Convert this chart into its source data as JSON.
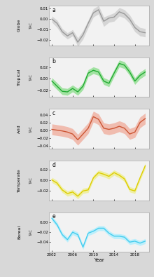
{
  "years": [
    2002,
    2003,
    2004,
    2005,
    2006,
    2007,
    2008,
    2009,
    2010,
    2011,
    2012,
    2013,
    2014,
    2015,
    2016,
    2017,
    2018,
    2019,
    2020
  ],
  "panels": [
    {
      "label": "a",
      "region": "Globe",
      "color_line": "#999999",
      "color_fill": "#cccccc",
      "ylim": [
        -0.025,
        0.013
      ],
      "yticks": [
        -0.02,
        -0.01,
        0,
        0.01
      ],
      "values": [
        0.0,
        -0.004,
        -0.012,
        -0.016,
        -0.013,
        -0.022,
        -0.015,
        -0.004,
        0.006,
        0.009,
        -0.002,
        0.001,
        0.002,
        0.007,
        0.005,
        0.0,
        -0.008,
        -0.012,
        -0.013
      ],
      "upper": [
        0.003,
        -0.001,
        -0.009,
        -0.013,
        -0.01,
        -0.018,
        -0.011,
        -0.001,
        0.01,
        0.013,
        0.002,
        0.004,
        0.006,
        0.011,
        0.009,
        0.004,
        -0.004,
        -0.008,
        -0.009
      ],
      "lower": [
        -0.003,
        -0.008,
        -0.015,
        -0.019,
        -0.016,
        -0.026,
        -0.019,
        -0.008,
        0.002,
        0.005,
        -0.007,
        -0.003,
        -0.002,
        0.003,
        0.001,
        -0.004,
        -0.012,
        -0.016,
        -0.017
      ]
    },
    {
      "label": "b",
      "region": "Tropical",
      "color_line": "#22aa33",
      "color_fill": "#88dd88",
      "ylim": [
        -0.032,
        0.038
      ],
      "yticks": [
        -0.02,
        0,
        0.02
      ],
      "values": [
        -0.004,
        -0.013,
        -0.022,
        -0.023,
        -0.017,
        -0.023,
        -0.013,
        0.01,
        0.015,
        0.012,
        -0.004,
        -0.008,
        0.01,
        0.027,
        0.024,
        0.012,
        -0.004,
        0.006,
        0.012
      ],
      "upper": [
        0.002,
        -0.007,
        -0.016,
        -0.017,
        -0.011,
        -0.017,
        -0.007,
        0.016,
        0.021,
        0.018,
        0.002,
        -0.002,
        0.016,
        0.033,
        0.03,
        0.018,
        0.002,
        0.012,
        0.018
      ],
      "lower": [
        -0.01,
        -0.019,
        -0.028,
        -0.029,
        -0.023,
        -0.029,
        -0.019,
        0.004,
        0.009,
        0.006,
        -0.01,
        -0.014,
        0.004,
        0.021,
        0.018,
        0.006,
        -0.01,
        0.0,
        0.006
      ]
    },
    {
      "label": "c",
      "region": "Arid",
      "color_line": "#cc5533",
      "color_fill": "#f0aa99",
      "ylim": [
        -0.048,
        0.055
      ],
      "yticks": [
        -0.04,
        -0.02,
        0,
        0.02,
        0.04
      ],
      "values": [
        0.002,
        0.0,
        -0.002,
        -0.005,
        -0.01,
        -0.025,
        -0.01,
        0.005,
        0.035,
        0.028,
        0.005,
        0.002,
        0.005,
        0.01,
        0.005,
        -0.01,
        -0.005,
        0.02,
        0.03
      ],
      "upper": [
        0.016,
        0.014,
        0.012,
        0.009,
        0.004,
        -0.011,
        0.004,
        0.019,
        0.049,
        0.042,
        0.019,
        0.016,
        0.019,
        0.024,
        0.019,
        0.004,
        0.009,
        0.034,
        0.044
      ],
      "lower": [
        -0.012,
        -0.014,
        -0.016,
        -0.019,
        -0.024,
        -0.039,
        -0.024,
        -0.009,
        0.021,
        0.014,
        -0.009,
        -0.012,
        -0.009,
        -0.004,
        -0.009,
        -0.024,
        -0.019,
        0.006,
        0.016
      ]
    },
    {
      "label": "d",
      "region": "Temperate",
      "color_line": "#ddcc00",
      "color_fill": "#eeee88",
      "ylim": [
        -0.038,
        0.038
      ],
      "yticks": [
        -0.02,
        0,
        0.02
      ],
      "values": [
        0.001,
        -0.005,
        -0.018,
        -0.025,
        -0.022,
        -0.03,
        -0.02,
        -0.018,
        0.005,
        0.015,
        0.012,
        0.008,
        0.015,
        0.01,
        0.003,
        -0.017,
        -0.02,
        0.005,
        0.028
      ],
      "upper": [
        0.006,
        0.0,
        -0.013,
        -0.02,
        -0.017,
        -0.025,
        -0.015,
        -0.013,
        0.01,
        0.02,
        0.017,
        0.013,
        0.02,
        0.015,
        0.008,
        -0.012,
        -0.015,
        0.01,
        0.033
      ],
      "lower": [
        -0.004,
        -0.01,
        -0.023,
        -0.03,
        -0.027,
        -0.035,
        -0.025,
        -0.023,
        0.0,
        0.01,
        0.007,
        0.003,
        0.01,
        0.005,
        -0.002,
        -0.022,
        -0.025,
        0.0,
        0.023
      ]
    },
    {
      "label": "e",
      "region": "Boreal",
      "color_line": "#44ccee",
      "color_fill": "#aaeeff",
      "ylim": [
        -0.06,
        0.02
      ],
      "yticks": [
        -0.04,
        -0.02,
        0
      ],
      "values": [
        0.008,
        -0.005,
        -0.025,
        -0.035,
        -0.02,
        -0.025,
        -0.05,
        -0.022,
        -0.018,
        -0.012,
        -0.012,
        -0.022,
        -0.028,
        -0.028,
        -0.03,
        -0.04,
        -0.038,
        -0.042,
        -0.038
      ],
      "upper": [
        0.013,
        0.0,
        -0.02,
        -0.03,
        -0.015,
        -0.02,
        -0.045,
        -0.017,
        -0.013,
        -0.007,
        -0.007,
        -0.017,
        -0.023,
        -0.023,
        -0.025,
        -0.035,
        -0.033,
        -0.037,
        -0.033
      ],
      "lower": [
        0.003,
        -0.01,
        -0.03,
        -0.04,
        -0.025,
        -0.03,
        -0.055,
        -0.027,
        -0.023,
        -0.017,
        -0.017,
        -0.027,
        -0.033,
        -0.033,
        -0.035,
        -0.045,
        -0.043,
        -0.047,
        -0.043
      ]
    }
  ],
  "xlabel": "Year",
  "bg_color": "#d8d8d8",
  "plot_bg": "#f2f2f2",
  "xticks": [
    2002,
    2006,
    2010,
    2014,
    2018
  ]
}
